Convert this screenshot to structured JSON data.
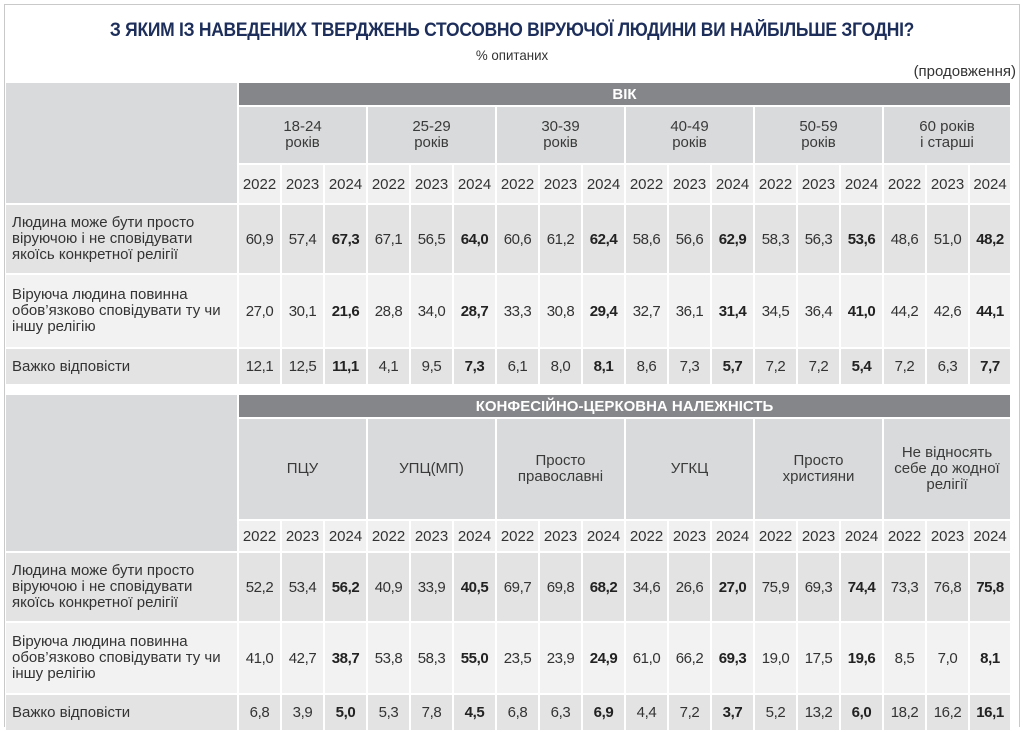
{
  "header": {
    "title": "З ЯКИМ ІЗ НАВЕДЕНИХ ТВЕРДЖЕНЬ СТОСОВНО ВІРУЮЧОЇ ЛЮДИНИ ВИ НАЙБІЛЬШЕ ЗГОДНІ?",
    "subtitle": "% опитаних",
    "continuation": "(продовження)"
  },
  "years": [
    "2022",
    "2023",
    "2024"
  ],
  "rows_labels": [
    "Людина може бути просто віруючою і не сповідувати якоїсь конкретної релігії",
    "Віруюча людина повинна обов’язково сповідувати ту чи іншу релігію",
    "Важко відповісти"
  ],
  "age_section": {
    "band_label": "ВІК",
    "groups": [
      {
        "line1": "18-24",
        "line2": "років"
      },
      {
        "line1": "25-29",
        "line2": "років"
      },
      {
        "line1": "30-39",
        "line2": "років"
      },
      {
        "line1": "40-49",
        "line2": "років"
      },
      {
        "line1": "50-59",
        "line2": "років"
      },
      {
        "line1": "60 років",
        "line2": "і старші"
      }
    ],
    "rows": [
      {
        "values": [
          "60,9",
          "57,4",
          "67,3",
          "67,1",
          "56,5",
          "64,0",
          "60,6",
          "61,2",
          "62,4",
          "58,6",
          "56,6",
          "62,9",
          "58,3",
          "56,3",
          "53,6",
          "48,6",
          "51,0",
          "48,2"
        ]
      },
      {
        "values": [
          "27,0",
          "30,1",
          "21,6",
          "28,8",
          "34,0",
          "28,7",
          "33,3",
          "30,8",
          "29,4",
          "32,7",
          "36,1",
          "31,4",
          "34,5",
          "36,4",
          "41,0",
          "44,2",
          "42,6",
          "44,1"
        ]
      },
      {
        "values": [
          "12,1",
          "12,5",
          "11,1",
          "4,1",
          "9,5",
          "7,3",
          "6,1",
          "8,0",
          "8,1",
          "8,6",
          "7,3",
          "5,7",
          "7,2",
          "7,2",
          "5,4",
          "7,2",
          "6,3",
          "7,7"
        ]
      }
    ]
  },
  "confession_section": {
    "band_label": "КОНФЕСІЙНО-ЦЕРКОВНА НАЛЕЖНІСТЬ",
    "groups": [
      {
        "line1": "ПЦУ",
        "line2": ""
      },
      {
        "line1": "УПЦ(МП)",
        "line2": ""
      },
      {
        "line1": "Просто",
        "line2": "православні"
      },
      {
        "line1": "УГКЦ",
        "line2": ""
      },
      {
        "line1": "Просто",
        "line2": "християни"
      },
      {
        "line1": "Не відносять себе до жодної",
        "line2": "релігії"
      }
    ],
    "rows": [
      {
        "values": [
          "52,2",
          "53,4",
          "56,2",
          "40,9",
          "33,9",
          "40,5",
          "69,7",
          "69,8",
          "68,2",
          "34,6",
          "26,6",
          "27,0",
          "75,9",
          "69,3",
          "74,4",
          "73,3",
          "76,8",
          "75,8"
        ]
      },
      {
        "values": [
          "41,0",
          "42,7",
          "38,7",
          "53,8",
          "58,3",
          "55,0",
          "23,5",
          "23,9",
          "24,9",
          "61,0",
          "66,2",
          "69,3",
          "19,0",
          "17,5",
          "19,6",
          "8,5",
          "7,0",
          "8,1"
        ]
      },
      {
        "values": [
          "6,8",
          "3,9",
          "5,0",
          "5,3",
          "7,8",
          "4,5",
          "6,8",
          "6,3",
          "6,9",
          "4,4",
          "7,2",
          "3,7",
          "5,2",
          "13,2",
          "6,0",
          "18,2",
          "16,2",
          "16,1"
        ]
      }
    ]
  },
  "colors": {
    "title": "#1d2e5a",
    "band": "#858689",
    "group_header": "#d9dadb",
    "year_row": "#f0f0f0",
    "row_dark": "#e3e3e3",
    "row_light": "#f2f2f2"
  }
}
